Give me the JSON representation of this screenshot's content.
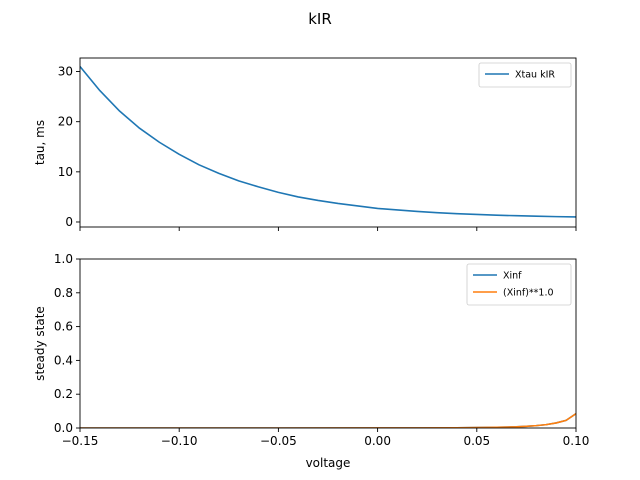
{
  "chart_data": {
    "suptitle": "kIR",
    "xlabel": "voltage",
    "xlim": [
      -0.15,
      0.1
    ],
    "xticks": [
      -0.15,
      -0.1,
      -0.05,
      0.0,
      0.05,
      0.1
    ],
    "xticklabels": [
      "−0.15",
      "−0.10",
      "−0.05",
      "0.00",
      "0.05",
      "0.10"
    ],
    "panels": [
      {
        "type": "line",
        "ylabel": "tau, ms",
        "ylim": [
          -1,
          32.7
        ],
        "yticks": [
          0,
          10,
          20,
          30
        ],
        "yticklabels": [
          "0",
          "10",
          "20",
          "30"
        ],
        "show_xticklabels": false,
        "legend": "top-right",
        "grid": false,
        "series": [
          {
            "name": "Xtau kIR",
            "color": "#1f77b4",
            "x": [
              -0.15,
              -0.14,
              -0.13,
              -0.12,
              -0.11,
              -0.1,
              -0.09,
              -0.08,
              -0.07,
              -0.06,
              -0.05,
              -0.04,
              -0.03,
              -0.02,
              -0.01,
              0.0,
              0.01,
              0.02,
              0.03,
              0.04,
              0.05,
              0.06,
              0.07,
              0.08,
              0.09,
              0.1
            ],
            "y": [
              31.0,
              26.2,
              22.1,
              18.7,
              15.9,
              13.5,
              11.4,
              9.7,
              8.2,
              7.0,
              5.9,
              5.0,
              4.3,
              3.7,
              3.2,
              2.7,
              2.4,
              2.1,
              1.85,
              1.65,
              1.5,
              1.35,
              1.25,
              1.15,
              1.07,
              1.0
            ]
          }
        ]
      },
      {
        "type": "line",
        "ylabel": "steady state",
        "ylim": [
          0.0,
          1.0
        ],
        "yticks": [
          0.0,
          0.2,
          0.4,
          0.6,
          0.8,
          1.0
        ],
        "yticklabels": [
          "0.0",
          "0.2",
          "0.4",
          "0.6",
          "0.8",
          "1.0"
        ],
        "show_xticklabels": true,
        "legend": "top-right",
        "grid": false,
        "series": [
          {
            "name": "Xinf",
            "color": "#1f77b4",
            "x": [
              -0.15,
              -0.1,
              -0.05,
              0.0,
              0.02,
              0.04,
              0.05,
              0.06,
              0.07,
              0.075,
              0.08,
              0.085,
              0.09,
              0.095,
              0.1
            ],
            "y": [
              0.0,
              0.0,
              0.0,
              0.0002,
              0.0006,
              0.0015,
              0.0025,
              0.004,
              0.007,
              0.01,
              0.014,
              0.02,
              0.03,
              0.045,
              0.085
            ]
          },
          {
            "name": "(Xinf)**1.0",
            "color": "#ff7f0e",
            "x": [
              -0.15,
              -0.1,
              -0.05,
              0.0,
              0.02,
              0.04,
              0.05,
              0.06,
              0.07,
              0.075,
              0.08,
              0.085,
              0.09,
              0.095,
              0.1
            ],
            "y": [
              0.0,
              0.0,
              0.0,
              0.0002,
              0.0006,
              0.0015,
              0.0025,
              0.004,
              0.007,
              0.01,
              0.014,
              0.02,
              0.03,
              0.045,
              0.085
            ]
          }
        ]
      }
    ]
  }
}
